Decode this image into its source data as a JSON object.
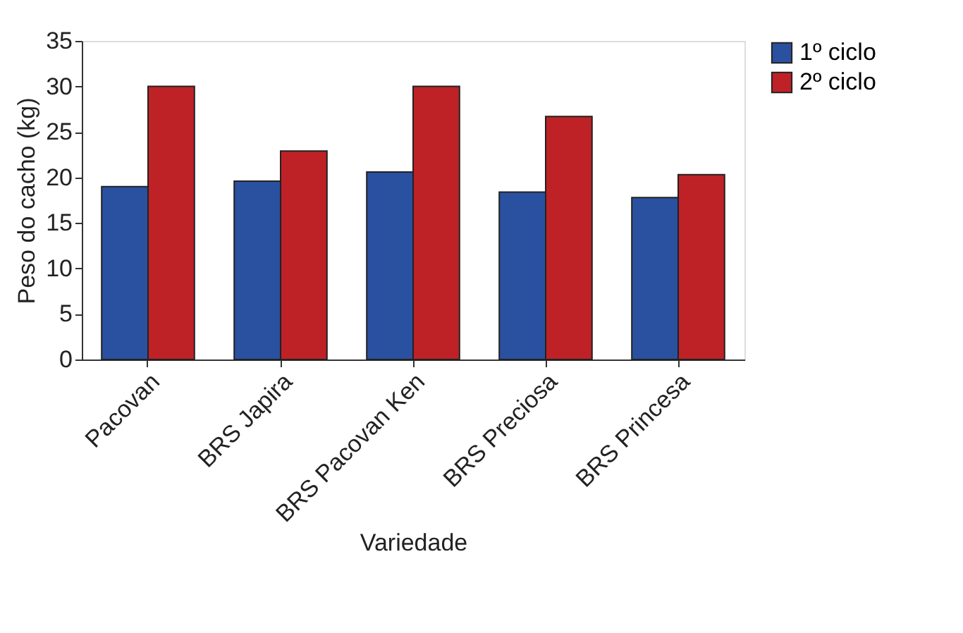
{
  "chart_data": {
    "type": "bar",
    "xlabel": "Variedade",
    "ylabel": "Peso do cacho (kg)",
    "categories": [
      "Pacovan",
      "BRS Japira",
      "BRS Pacovan Ken",
      "BRS Preciosa",
      "BRS Princesa"
    ],
    "series": [
      {
        "name": "1º ciclo",
        "color": "#2a50a0",
        "values": [
          19.0,
          19.6,
          20.6,
          18.4,
          17.8
        ]
      },
      {
        "name": "2º ciclo",
        "color": "#be2226",
        "values": [
          30.0,
          22.9,
          30.0,
          26.7,
          20.3
        ]
      }
    ],
    "ylim": [
      0,
      35
    ],
    "yticks": [
      0,
      5,
      10,
      15,
      20,
      25,
      30,
      35
    ],
    "grid": false,
    "legend": "right"
  }
}
